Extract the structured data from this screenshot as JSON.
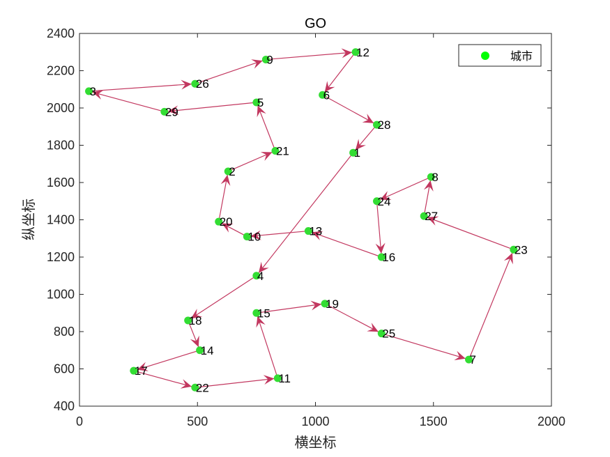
{
  "chart_data": {
    "type": "scatter",
    "title": "GO",
    "xlabel": "横坐标",
    "ylabel": "纵坐标",
    "xlim": [
      0,
      2000
    ],
    "ylim": [
      400,
      2400
    ],
    "xticks": [
      0,
      500,
      1000,
      1500,
      2000
    ],
    "yticks": [
      400,
      600,
      800,
      1000,
      1200,
      1400,
      1600,
      1800,
      2000,
      2200,
      2400
    ],
    "grid": false,
    "legend": {
      "entries": [
        "城市"
      ],
      "placement": "top-right"
    },
    "colors": {
      "points": "#33dd33",
      "arrows": "#c2375f",
      "legend_marker": "#00ff00"
    },
    "points": [
      {
        "label": "1",
        "x": 1160,
        "y": 1760
      },
      {
        "label": "2",
        "x": 630,
        "y": 1660
      },
      {
        "label": "3",
        "x": 40,
        "y": 2090
      },
      {
        "label": "4",
        "x": 750,
        "y": 1100
      },
      {
        "label": "5",
        "x": 750,
        "y": 2030
      },
      {
        "label": "6",
        "x": 1030,
        "y": 2070
      },
      {
        "label": "7",
        "x": 1650,
        "y": 650
      },
      {
        "label": "8",
        "x": 1490,
        "y": 1630
      },
      {
        "label": "9",
        "x": 790,
        "y": 2260
      },
      {
        "label": "10",
        "x": 710,
        "y": 1310
      },
      {
        "label": "11",
        "x": 840,
        "y": 550
      },
      {
        "label": "12",
        "x": 1170,
        "y": 2300
      },
      {
        "label": "13",
        "x": 970,
        "y": 1340
      },
      {
        "label": "14",
        "x": 510,
        "y": 700
      },
      {
        "label": "15",
        "x": 750,
        "y": 900
      },
      {
        "label": "16",
        "x": 1280,
        "y": 1200
      },
      {
        "label": "17",
        "x": 230,
        "y": 590
      },
      {
        "label": "18",
        "x": 460,
        "y": 860
      },
      {
        "label": "19",
        "x": 1040,
        "y": 950
      },
      {
        "label": "20",
        "x": 590,
        "y": 1390
      },
      {
        "label": "21",
        "x": 830,
        "y": 1770
      },
      {
        "label": "22",
        "x": 490,
        "y": 500
      },
      {
        "label": "23",
        "x": 1840,
        "y": 1240
      },
      {
        "label": "24",
        "x": 1260,
        "y": 1500
      },
      {
        "label": "25",
        "x": 1280,
        "y": 790
      },
      {
        "label": "26",
        "x": 490,
        "y": 2130
      },
      {
        "label": "27",
        "x": 1460,
        "y": 1420
      },
      {
        "label": "28",
        "x": 1260,
        "y": 1910
      },
      {
        "label": "29",
        "x": 360,
        "y": 1980
      }
    ],
    "route": [
      "1",
      "4",
      "18",
      "14",
      "17",
      "22",
      "11",
      "15",
      "19",
      "25",
      "7",
      "23",
      "27",
      "8",
      "24",
      "16",
      "13",
      "10",
      "20",
      "2",
      "21",
      "5",
      "29",
      "3",
      "26",
      "9",
      "12",
      "6",
      "28",
      "1"
    ]
  }
}
